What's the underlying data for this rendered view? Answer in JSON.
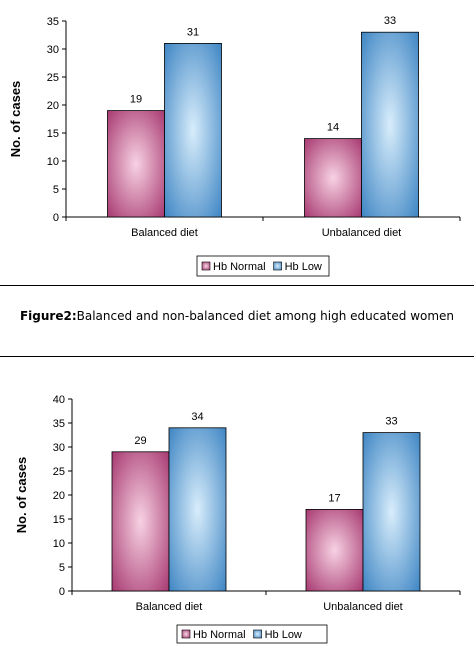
{
  "caption": {
    "label": "Figure2:",
    "text": "Balanced and non-balanced diet among high educated women"
  },
  "colors": {
    "hb_normal_center": "#f7d2e3",
    "hb_normal_edge": "#a83a72",
    "hb_low_center": "#d8edfb",
    "hb_low_edge": "#3f86c4",
    "axis": "#000000",
    "frame": "#000000"
  },
  "chart_data": [
    {
      "type": "bar",
      "ylabel": "No. of cases",
      "xlabel": "",
      "ylim": [
        0,
        35
      ],
      "yticks": [
        0,
        5,
        10,
        15,
        20,
        25,
        30,
        35
      ],
      "categories": [
        "Balanced diet",
        "Unbalanced diet"
      ],
      "series": [
        {
          "name": "Hb Normal",
          "values": [
            19,
            14
          ]
        },
        {
          "name": "Hb Low",
          "values": [
            31,
            33
          ]
        }
      ],
      "legend": "bottom",
      "grid": false
    },
    {
      "type": "bar",
      "ylabel": "No. of cases",
      "xlabel": "",
      "ylim": [
        0,
        40
      ],
      "yticks": [
        0,
        5,
        10,
        15,
        20,
        25,
        30,
        35,
        40
      ],
      "categories": [
        "Balanced diet",
        "Unbalanced diet"
      ],
      "series": [
        {
          "name": "Hb Normal",
          "values": [
            29,
            17
          ]
        },
        {
          "name": "Hb Low",
          "values": [
            34,
            33
          ]
        }
      ],
      "legend": "bottom",
      "grid": false
    }
  ]
}
